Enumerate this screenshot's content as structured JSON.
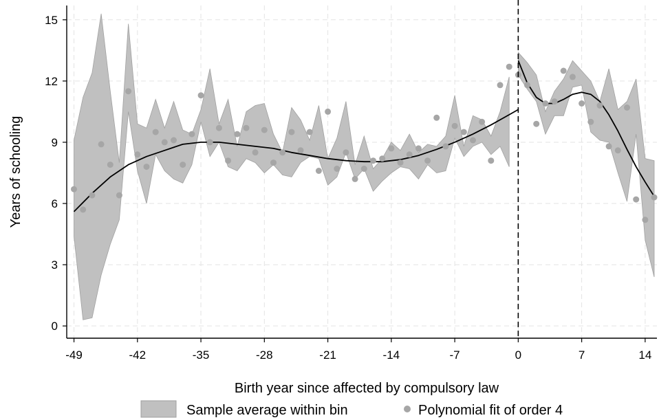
{
  "chart_data": {
    "type": "scatter",
    "xlabel": "Birth year since affected by compulsory law",
    "ylabel": "Years of schooling",
    "xlim": [
      -49.8,
      15.3
    ],
    "ylim": [
      -0.6,
      15.7
    ],
    "x_ticks": [
      -49,
      -42,
      -35,
      -28,
      -21,
      -14,
      -7,
      0,
      7,
      14
    ],
    "y_ticks": [
      0,
      3,
      6,
      9,
      12,
      15
    ],
    "x_tick_labels": [
      "-49",
      "-42",
      "-35",
      "-28",
      "-21",
      "-14",
      "-7",
      "0",
      "7",
      "14"
    ],
    "y_tick_labels": [
      "0",
      "3",
      "6",
      "9",
      "12",
      "15"
    ],
    "grid": true,
    "legend_position": "bottom",
    "cutoff_x": 0,
    "colors": {
      "band": "#c0c0c0",
      "band_edge": "#a0a0a0",
      "point": "#a6a6a6",
      "fit": "#000000",
      "cutoff": "#000000"
    },
    "legend": [
      {
        "label": "Sample average within bin",
        "marker": "band"
      },
      {
        "label": "Polynomial fit of order 4",
        "marker": "point"
      }
    ],
    "series": [
      {
        "name": "Sample average within bin",
        "kind": "band",
        "segments": [
          {
            "x": [
              -49,
              -48,
              -47,
              -46,
              -45,
              -44,
              -43,
              -42,
              -41,
              -40,
              -39,
              -38,
              -37,
              -36,
              -35,
              -34,
              -33,
              -32,
              -31,
              -30,
              -29,
              -28,
              -27,
              -26,
              -25,
              -24,
              -23,
              -22,
              -21,
              -20,
              -19,
              -18,
              -17,
              -16,
              -15,
              -14,
              -13,
              -12,
              -11,
              -10,
              -9,
              -8,
              -7,
              -6,
              -5,
              -4,
              -3,
              -2,
              -1
            ],
            "lower": [
              4.4,
              0.3,
              0.4,
              2.5,
              4.0,
              5.2,
              10.5,
              7.6,
              6.0,
              8.4,
              7.6,
              7.2,
              7.0,
              7.9,
              10.0,
              8.3,
              9.0,
              7.8,
              7.6,
              8.2,
              8.0,
              7.5,
              7.9,
              7.4,
              7.3,
              8.0,
              8.3,
              8.2,
              6.9,
              7.3,
              8.5,
              7.2,
              7.7,
              6.6,
              7.1,
              7.5,
              7.8,
              7.7,
              7.2,
              7.9,
              7.5,
              7.6,
              9.2,
              8.3,
              8.8,
              9.0,
              8.4,
              8.8,
              7.8
            ],
            "upper": [
              9.1,
              11.2,
              12.4,
              15.3,
              11.5,
              8.0,
              14.8,
              9.9,
              9.7,
              11.1,
              9.7,
              11.0,
              9.6,
              9.4,
              10.6,
              12.6,
              9.9,
              11.1,
              8.8,
              10.5,
              10.8,
              10.9,
              9.4,
              8.5,
              10.7,
              10.1,
              9.1,
              10.8,
              8.2,
              9.2,
              11.0,
              7.9,
              9.3,
              7.7,
              8.2,
              9.0,
              8.6,
              9.4,
              8.5,
              8.9,
              8.8,
              9.3,
              11.3,
              8.8,
              10.3,
              10.1,
              9.3,
              10.5,
              12.2
            ]
          },
          {
            "x": [
              0,
              1,
              2,
              3,
              4,
              5,
              6,
              7,
              8,
              9,
              10,
              11,
              12,
              13,
              14,
              15
            ],
            "lower": [
              12.3,
              11.6,
              11.0,
              9.4,
              10.3,
              10.3,
              11.7,
              11.8,
              9.5,
              9.1,
              9.0,
              7.5,
              6.1,
              9.4,
              4.2,
              2.4
            ],
            "upper": [
              13.4,
              12.9,
              12.3,
              10.5,
              11.5,
              12.1,
              13.0,
              12.5,
              12.0,
              11.0,
              12.6,
              10.6,
              11.0,
              12.1,
              8.2,
              8.1
            ]
          }
        ]
      },
      {
        "name": "Polynomial fit of order 4",
        "kind": "points",
        "x": [
          -49,
          -48,
          -47,
          -46,
          -45,
          -44,
          -43,
          -42,
          -41,
          -40,
          -39,
          -38,
          -37,
          -36,
          -35,
          -34,
          -33,
          -32,
          -31,
          -30,
          -29,
          -28,
          -27,
          -26,
          -25,
          -24,
          -23,
          -22,
          -21,
          -20,
          -19,
          -18,
          -17,
          -16,
          -15,
          -14,
          -13,
          -12,
          -11,
          -10,
          -9,
          -8,
          -7,
          -6,
          -5,
          -4,
          -3,
          -2,
          -1,
          0,
          1,
          2,
          3,
          4,
          5,
          6,
          7,
          8,
          9,
          10,
          11,
          12,
          13,
          14,
          15
        ],
        "y": [
          6.7,
          5.7,
          6.4,
          8.9,
          7.9,
          6.4,
          11.5,
          8.4,
          7.8,
          9.5,
          9.0,
          9.1,
          7.9,
          9.4,
          11.3,
          9.0,
          9.7,
          8.1,
          9.4,
          9.7,
          8.5,
          9.6,
          8.0,
          8.5,
          9.5,
          8.6,
          9.5,
          7.6,
          10.5,
          7.7,
          8.5,
          7.2,
          7.7,
          8.1,
          8.2,
          8.7,
          8.0,
          8.4,
          8.7,
          8.1,
          10.2,
          8.8,
          9.8,
          9.5,
          9.1,
          10.0,
          8.1,
          11.8,
          12.7,
          12.3,
          11.8,
          9.9,
          10.9,
          11.0,
          12.5,
          12.2,
          10.9,
          10.0,
          10.8,
          8.8,
          8.6,
          10.7,
          6.2,
          5.2,
          6.3
        ]
      },
      {
        "kind": "line",
        "segments": [
          {
            "x": [
              -49,
              -47,
              -45,
              -43,
              -41,
              -39,
              -37,
              -35,
              -33,
              -31,
              -29,
              -27,
              -25,
              -23,
              -21,
              -19,
              -17,
              -15,
              -13,
              -11,
              -9,
              -7,
              -5,
              -3,
              -1,
              0
            ],
            "y": [
              5.6,
              6.5,
              7.3,
              7.9,
              8.3,
              8.6,
              8.9,
              9.0,
              9.0,
              8.9,
              8.8,
              8.7,
              8.5,
              8.35,
              8.2,
              8.1,
              8.05,
              8.05,
              8.15,
              8.35,
              8.65,
              9.0,
              9.4,
              9.85,
              10.35,
              10.6
            ]
          },
          {
            "x": [
              0,
              1,
              2,
              3,
              4,
              5,
              6,
              7,
              8,
              9,
              10,
              11,
              12,
              13,
              14,
              15
            ],
            "y": [
              13.0,
              11.9,
              11.2,
              10.9,
              10.9,
              11.1,
              11.35,
              11.45,
              11.35,
              11.0,
              10.35,
              9.55,
              8.65,
              7.8,
              7.05,
              6.35
            ]
          }
        ]
      }
    ]
  }
}
